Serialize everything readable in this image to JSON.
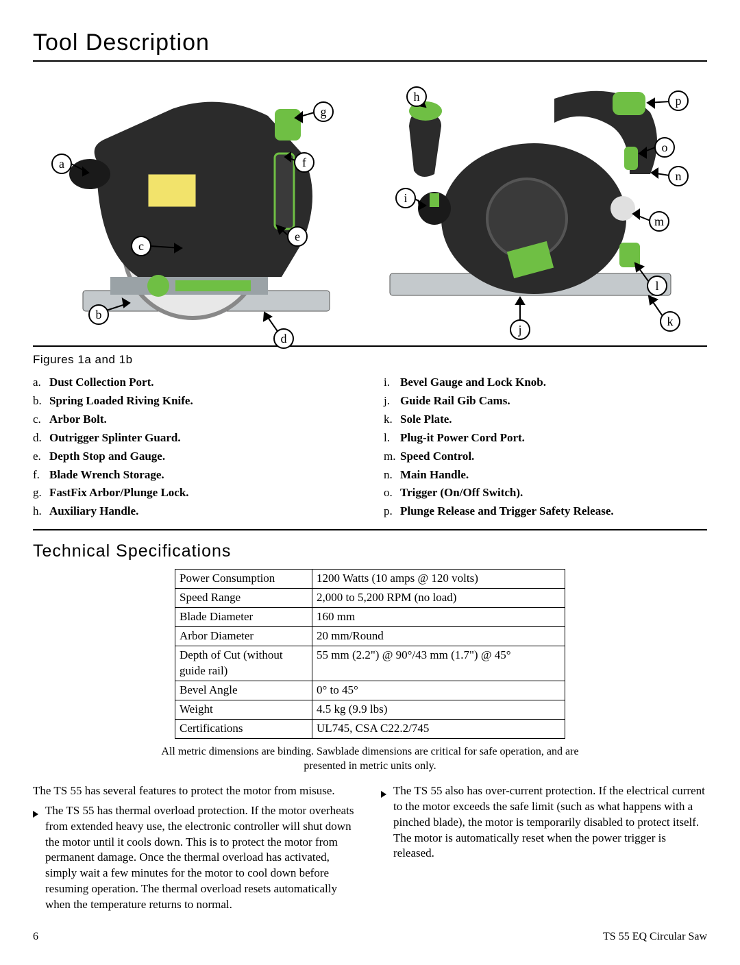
{
  "title_tool_description": "Tool Description",
  "title_tech_spec": "Technical Specifications",
  "figure_caption": "Figures 1a and 1b",
  "callouts_left": [
    "a",
    "b",
    "c",
    "d",
    "e",
    "f",
    "g"
  ],
  "callouts_right": [
    "h",
    "i",
    "j",
    "k",
    "l",
    "m",
    "n",
    "o",
    "p"
  ],
  "parts_left": [
    {
      "letter": "a.",
      "label": "Dust Collection Port."
    },
    {
      "letter": "b.",
      "label": "Spring Loaded Riving Knife."
    },
    {
      "letter": "c.",
      "label": "Arbor Bolt."
    },
    {
      "letter": "d.",
      "label": "Outrigger Splinter Guard."
    },
    {
      "letter": "e.",
      "label": "Depth Stop and Gauge."
    },
    {
      "letter": "f.",
      "label": "Blade Wrench Storage."
    },
    {
      "letter": "g.",
      "label": "FastFix Arbor/Plunge Lock."
    },
    {
      "letter": "h.",
      "label": "Auxiliary Handle."
    }
  ],
  "parts_right": [
    {
      "letter": "i.",
      "label": "Bevel Gauge and Lock Knob."
    },
    {
      "letter": "j.",
      "label": "Guide Rail Gib Cams."
    },
    {
      "letter": "k.",
      "label": "Sole Plate."
    },
    {
      "letter": "l.",
      "label": "Plug-it Power Cord Port."
    },
    {
      "letter": "m.",
      "label": "Speed Control."
    },
    {
      "letter": "n.",
      "label": "Main Handle."
    },
    {
      "letter": "o.",
      "label": "Trigger (On/Off Switch)."
    },
    {
      "letter": "p.",
      "label": "Plunge Release and Trigger Safety Release."
    }
  ],
  "specs": [
    {
      "k": "Power Consumption",
      "v": "1200 Watts (10 amps @ 120 volts)"
    },
    {
      "k": "Speed Range",
      "v": "2,000 to 5,200 RPM (no load)"
    },
    {
      "k": "Blade Diameter",
      "v": "160 mm"
    },
    {
      "k": "Arbor Diameter",
      "v": "20 mm/Round"
    },
    {
      "k": "Depth of Cut (without guide rail)",
      "v": "55 mm (2.2\") @ 90°/43 mm (1.7\") @ 45°"
    },
    {
      "k": "Bevel Angle",
      "v": "0° to 45°"
    },
    {
      "k": "Weight",
      "v": "4.5 kg (9.9 lbs)"
    },
    {
      "k": "Certifications",
      "v": "UL745, CSA C22.2/745"
    }
  ],
  "note": "All metric dimensions are binding. Sawblade dimensions are critical for safe operation, and are presented in metric units only.",
  "intro": "The TS 55 has several features to protect the motor from misuse.",
  "bullets": [
    "The TS 55 has thermal overload protection. If the motor overheats from extended heavy use, the electronic controller will shut down the motor until it cools down. This is to protect the motor from permanent damage. Once the thermal overload has activated, simply wait a few minutes for the motor to cool down before resuming operation. The thermal overload resets automatically when the temperature returns to normal.",
    "The TS 55 also has over-current protection. If the electrical current to the motor exceeds the safe limit (such as what happens with a pinched blade), the motor is temporarily disabled to protect itself. The motor is automatically reset when the power trigger is released."
  ],
  "page_number": "6",
  "product_name": "TS 55 EQ Circular Saw",
  "colors": {
    "festool_green": "#6fbf44",
    "tool_dark": "#2b2b2b",
    "tool_gray": "#9aa2a6",
    "plate_gray": "#c4c9cc"
  }
}
